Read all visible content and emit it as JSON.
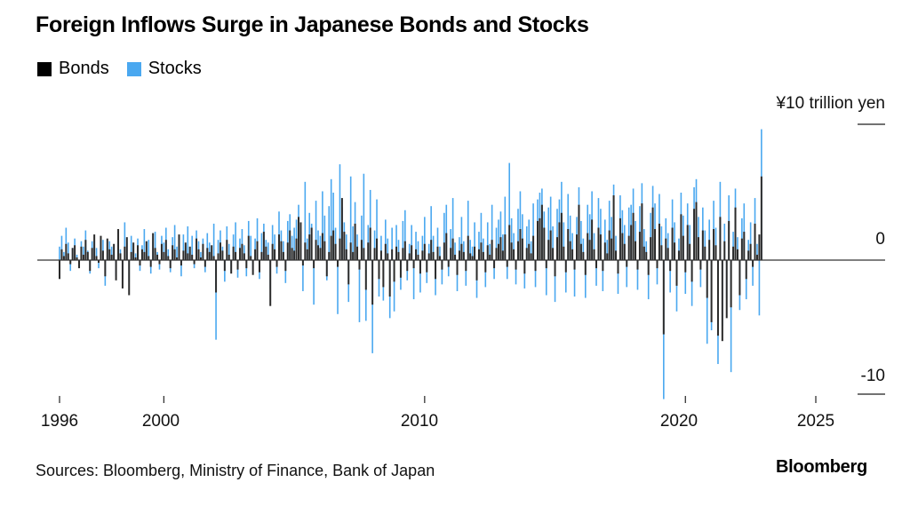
{
  "chart_data": {
    "type": "bar",
    "title": "Foreign Inflows Surge in Japanese Bonds and Stocks",
    "unit_label": "¥10 trillion yen",
    "frequency": "monthly",
    "x_start": "1996-01",
    "x_ticks": [
      "1996",
      "2000",
      "2010",
      "2020",
      "2025"
    ],
    "y_ticks": [
      "¥10 trillion yen",
      "0",
      "-10"
    ],
    "ylim": [
      -10.5,
      10
    ],
    "grid": false,
    "legend_position": "top-left",
    "series": [
      {
        "name": "Bonds",
        "color": "#000000",
        "values": [
          -1.4,
          0.8,
          0.3,
          1.2,
          0.5,
          -0.3,
          0.9,
          1.1,
          0.2,
          -0.6,
          1.0,
          0.4,
          1.5,
          0.6,
          -0.8,
          0.9,
          1.9,
          0.3,
          -0.2,
          1.8,
          0.7,
          -1.2,
          1.6,
          0.8,
          0.4,
          1.2,
          -1.5,
          2.3,
          0.5,
          -2.1,
          1.0,
          1.7,
          -2.6,
          0.6,
          1.3,
          0.2,
          1.1,
          -0.4,
          0.8,
          0.6,
          1.4,
          0.3,
          -0.5,
          2.0,
          0.9,
          0.4,
          -0.3,
          1.2,
          0.6,
          1.5,
          0.3,
          -0.6,
          1.1,
          0.8,
          0.2,
          1.9,
          -0.4,
          0.7,
          1.3,
          0.5,
          1.0,
          0.4,
          -0.3,
          1.6,
          0.8,
          0.2,
          1.2,
          -0.5,
          0.9,
          0.6,
          1.1,
          0.3,
          -2.4,
          0.5,
          1.3,
          0.7,
          -0.8,
          1.5,
          0.4,
          -1.0,
          1.0,
          0.6,
          -0.7,
          0.9,
          1.2,
          0.5,
          -0.6,
          1.8,
          0.3,
          -1.1,
          0.8,
          1.4,
          -0.9,
          0.6,
          2.1,
          1.0,
          0.4,
          -3.4,
          1.2,
          0.8,
          -0.5,
          1.9,
          1.4,
          0.6,
          -0.8,
          1.3,
          2.2,
          0.9,
          0.7,
          1.6,
          3.2,
          2.8,
          -0.4,
          1.3,
          0.8,
          1.9,
          2.4,
          -0.6,
          1.5,
          1.1,
          0.9,
          2.0,
          1.4,
          -1.2,
          0.6,
          1.8,
          2.2,
          1.2,
          -0.5,
          1.6,
          4.6,
          2.1,
          0.8,
          -1.8,
          1.3,
          0.6,
          2.7,
          1.0,
          -0.7,
          1.5,
          0.9,
          -2.2,
          1.3,
          2.4,
          -3.3,
          0.9,
          1.6,
          -1.4,
          0.7,
          -2.0,
          1.2,
          0.5,
          -2.7,
          0.8,
          -1.6,
          1.0,
          0.6,
          -1.3,
          0.9,
          1.4,
          -0.8,
          0.5,
          1.1,
          -0.6,
          0.8,
          0.4,
          -1.0,
          0.7,
          1.2,
          -0.9,
          0.5,
          1.5,
          0.6,
          -1.4,
          1.0,
          0.3,
          -0.7,
          1.3,
          2.0,
          -0.5,
          0.9,
          1.6,
          0.4,
          -1.1,
          0.7,
          1.2,
          0.6,
          -0.8,
          1.8,
          0.5,
          0.3,
          1.0,
          -1.5,
          0.8,
          1.3,
          0.6,
          -0.9,
          1.1,
          0.4,
          1.5,
          -0.6,
          0.9,
          1.2,
          1.7,
          0.7,
          1.9,
          -0.5,
          2.6,
          1.3,
          0.8,
          -0.7,
          1.4,
          2.3,
          1.6,
          -1.0,
          0.9,
          1.2,
          0.5,
          1.8,
          -0.8,
          2.9,
          3.1,
          4.1,
          2.4,
          -0.6,
          1.5,
          2.2,
          0.9,
          -1.2,
          1.7,
          2.8,
          3.5,
          1.0,
          -0.9,
          2.3,
          1.4,
          0.8,
          -0.7,
          1.9,
          4.1,
          1.2,
          0.6,
          -1.1,
          2.0,
          1.5,
          3.0,
          0.8,
          -0.6,
          2.4,
          1.9,
          -0.8,
          1.3,
          0.5,
          2.2,
          1.6,
          4.8,
          0.7,
          -1.0,
          3.1,
          2.0,
          1.2,
          -0.5,
          1.8,
          2.6,
          3.5,
          1.4,
          -0.7,
          2.1,
          4.2,
          1.0,
          0.6,
          -1.1,
          1.7,
          3.9,
          2.3,
          -0.6,
          2.7,
          1.1,
          -5.5,
          1.6,
          0.9,
          -0.8,
          2.4,
          1.3,
          -1.9,
          0.7,
          3.4,
          1.8,
          -0.9,
          2.6,
          1.2,
          -1.6,
          3.8,
          4.3,
          1.7,
          -0.7,
          2.2,
          1.0,
          -2.8,
          1.5,
          -4.6,
          2.3,
          1.1,
          -5.6,
          3.2,
          -6.0,
          1.4,
          -4.3,
          2.9,
          -3.5,
          1.0,
          3.9,
          0.8,
          -2.6,
          1.6,
          2.1,
          -1.4,
          0.7,
          1.2,
          -0.5,
          2.7,
          0.4,
          1.9,
          6.2
        ]
      },
      {
        "name": "Stocks",
        "color": "#4aa8f0",
        "values": [
          1.0,
          1.8,
          0.6,
          2.4,
          1.3,
          -0.8,
          0.9,
          1.6,
          0.4,
          -0.5,
          1.4,
          1.0,
          2.2,
          0.7,
          -1.0,
          1.4,
          1.1,
          0.9,
          -0.6,
          0.8,
          1.5,
          -1.9,
          0.9,
          1.4,
          1.0,
          0.6,
          -1.2,
          1.2,
          0.8,
          -1.4,
          2.8,
          1.3,
          -1.6,
          1.8,
          0.9,
          0.5,
          1.6,
          -0.8,
          1.1,
          2.3,
          0.7,
          1.5,
          -1.0,
          1.4,
          2.1,
          0.6,
          -0.7,
          1.8,
          1.3,
          2.4,
          0.8,
          -0.9,
          1.7,
          2.6,
          1.0,
          0.5,
          -1.2,
          1.9,
          1.1,
          2.5,
          0.7,
          1.8,
          -0.6,
          2.2,
          1.4,
          0.6,
          1.6,
          -0.9,
          2.0,
          1.3,
          0.8,
          2.7,
          -5.9,
          1.5,
          2.2,
          1.0,
          -1.6,
          2.5,
          1.2,
          -0.8,
          1.9,
          2.8,
          -1.3,
          1.6,
          2.3,
          1.1,
          -1.2,
          2.9,
          1.8,
          -0.7,
          1.6,
          3.1,
          -1.4,
          2.0,
          2.7,
          1.5,
          1.3,
          -2.1,
          2.6,
          1.9,
          -1.0,
          3.6,
          2.2,
          1.4,
          -1.7,
          2.9,
          3.4,
          1.8,
          2.4,
          3.0,
          4.1,
          2.1,
          -2.3,
          5.8,
          1.6,
          3.5,
          2.7,
          -3.3,
          4.4,
          2.2,
          1.8,
          5.1,
          3.3,
          -1.5,
          4.0,
          6.0,
          5.0,
          2.4,
          -4.0,
          7.1,
          3.9,
          2.8,
          1.9,
          -3.1,
          6.2,
          2.5,
          4.3,
          1.9,
          -4.6,
          3.3,
          6.4,
          -4.5,
          2.6,
          5.2,
          -6.9,
          2.2,
          4.5,
          -2.7,
          1.8,
          -3.0,
          3.0,
          1.6,
          -4.3,
          2.4,
          -3.8,
          2.6,
          1.5,
          -2.2,
          2.9,
          3.7,
          -1.5,
          1.2,
          2.6,
          -2.9,
          2.1,
          1.4,
          -2.4,
          1.8,
          3.2,
          -1.7,
          1.2,
          4.0,
          1.8,
          -2.6,
          2.4,
          1.0,
          -1.8,
          3.5,
          4.1,
          -1.2,
          2.3,
          4.6,
          1.3,
          -2.3,
          1.7,
          3.2,
          1.4,
          -1.9,
          4.4,
          1.5,
          1.0,
          2.8,
          -2.8,
          2.1,
          3.5,
          1.6,
          -2.0,
          2.8,
          1.2,
          4.1,
          -1.4,
          2.4,
          3.0,
          3.6,
          1.9,
          4.7,
          -1.4,
          7.2,
          3.1,
          2.0,
          -1.8,
          3.8,
          5.1,
          3.4,
          -2.1,
          2.5,
          3.0,
          1.4,
          4.2,
          -2.0,
          4.5,
          5.0,
          5.3,
          3.6,
          -2.6,
          3.9,
          4.7,
          2.5,
          -3.1,
          3.8,
          4.5,
          5.8,
          2.8,
          -2.4,
          4.9,
          3.3,
          2.0,
          -2.7,
          3.2,
          5.4,
          2.9,
          1.6,
          -2.8,
          4.1,
          3.4,
          5.1,
          2.0,
          -1.9,
          4.6,
          3.8,
          -2.3,
          3.0,
          1.5,
          4.4,
          3.2,
          5.6,
          1.8,
          -2.5,
          4.8,
          3.7,
          2.6,
          -2.0,
          3.9,
          4.1,
          5.3,
          2.9,
          -2.2,
          4.0,
          5.7,
          2.3,
          1.4,
          -2.9,
          3.5,
          5.5,
          4.2,
          -1.8,
          4.9,
          2.5,
          -10.3,
          3.1,
          2.0,
          -2.4,
          4.5,
          2.8,
          -3.8,
          1.6,
          5.0,
          3.3,
          -2.5,
          4.2,
          2.6,
          -3.4,
          5.4,
          6.0,
          3.2,
          -2.0,
          3.9,
          2.2,
          -6.2,
          3.0,
          -5.2,
          4.4,
          2.4,
          -7.7,
          5.8,
          -4.9,
          2.7,
          -2.8,
          4.8,
          -8.3,
          2.1,
          5.3,
          1.7,
          -3.7,
          3.1,
          4.2,
          -2.9,
          1.5,
          2.8,
          -1.9,
          4.6,
          1.2,
          -4.1,
          9.7
        ]
      }
    ]
  },
  "header": {
    "title": "Foreign Inflows Surge in Japanese Bonds and Stocks"
  },
  "legend": {
    "items": [
      {
        "label": "Bonds",
        "color": "#000000"
      },
      {
        "label": "Stocks",
        "color": "#4aa8f0"
      }
    ]
  },
  "axis": {
    "y_top_label": "¥10 trillion yen",
    "y_zero_label": "0",
    "y_bottom_label": "-10",
    "x_labels": [
      "1996",
      "2000",
      "2010",
      "2020",
      "2025"
    ]
  },
  "footer": {
    "source": "Sources: Bloomberg, Ministry of Finance, Bank of Japan",
    "logo": "Bloomberg"
  }
}
